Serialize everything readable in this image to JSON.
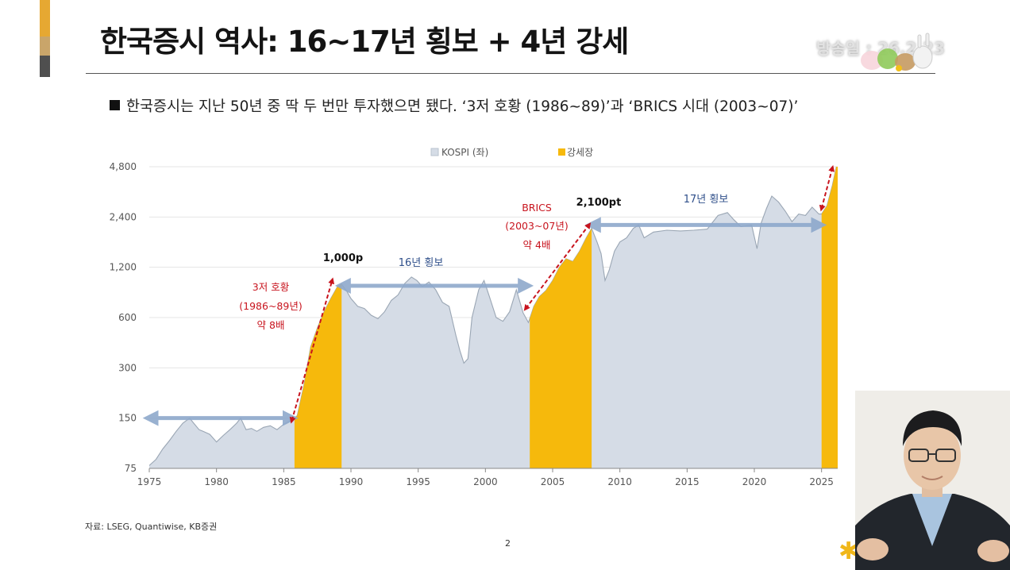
{
  "slide": {
    "title": "한국증시 역사: 16~17년 횡보 + 4년 강세",
    "subtitle": "한국증시는 지난 50년 중 딱 두 번만 투자했으면 됐다. ‘3저 호황 (1986~89)’과 ‘BRICS 시대 (2003~07)’",
    "source": "자료: LSEG, Quantiwise, KB증권",
    "page_number": "2",
    "watermark": "방송일 : 26.2.23"
  },
  "colors": {
    "accent_top": "#e6a832",
    "kospi_fill": "#d5dce6",
    "kospi_line": "#9aa6b4",
    "bull_fill": "#f6b90c",
    "arrow_blue": "#8ea9cc",
    "annotation_red": "#c8141e",
    "annotation_blue": "#2f4f8a"
  },
  "chart_data": {
    "type": "area",
    "legend": {
      "placement": "top-center",
      "items": [
        "KOSPI (좌)",
        "강세장"
      ]
    },
    "y_scale": "log",
    "ylim": [
      75,
      4800
    ],
    "yticks": [
      75,
      150,
      300,
      600,
      1200,
      2400,
      4800
    ],
    "ytick_labels": [
      "75",
      "150",
      "300",
      "600",
      "1,200",
      "2,400",
      "4,800"
    ],
    "xlim": [
      1975,
      2026.2
    ],
    "xticks": [
      1975,
      1980,
      1985,
      1990,
      1995,
      2000,
      2005,
      2010,
      2015,
      2020,
      2025
    ],
    "xtick_labels": [
      "1975",
      "1980",
      "1985",
      "1990",
      "1995",
      "2000",
      "2005",
      "2010",
      "2015",
      "2020",
      "2025"
    ],
    "series": [
      {
        "name": "KOSPI (좌)",
        "x": [
          1975.0,
          1975.5,
          1976.0,
          1976.5,
          1977.0,
          1977.5,
          1978.0,
          1978.3,
          1978.7,
          1979.0,
          1979.5,
          1980.0,
          1980.5,
          1981.0,
          1981.5,
          1981.8,
          1982.2,
          1982.6,
          1983.0,
          1983.5,
          1984.0,
          1984.5,
          1985.0,
          1985.5,
          1986.0,
          1986.5,
          1987.0,
          1987.5,
          1988.0,
          1988.5,
          1989.0,
          1989.3,
          1989.7,
          1990.0,
          1990.5,
          1991.0,
          1991.5,
          1992.0,
          1992.5,
          1993.0,
          1993.5,
          1994.0,
          1994.5,
          1994.9,
          1995.3,
          1995.8,
          1996.3,
          1996.8,
          1997.3,
          1997.8,
          1998.1,
          1998.4,
          1998.7,
          1999.0,
          1999.5,
          1999.9,
          2000.3,
          2000.8,
          2001.3,
          2001.8,
          2002.3,
          2002.8,
          2003.2,
          2003.6,
          2004.0,
          2004.5,
          2005.0,
          2005.5,
          2006.0,
          2006.5,
          2007.0,
          2007.5,
          2007.9,
          2008.3,
          2008.6,
          2008.9,
          2009.2,
          2009.6,
          2010.0,
          2010.5,
          2011.0,
          2011.4,
          2011.8,
          2012.5,
          2013.5,
          2014.5,
          2015.5,
          2016.5,
          2017.3,
          2018.0,
          2018.5,
          2019.0,
          2019.8,
          2020.2,
          2020.5,
          2020.9,
          2021.3,
          2021.8,
          2022.3,
          2022.8,
          2023.3,
          2023.8,
          2024.3,
          2024.8,
          2025.0,
          2025.4,
          2025.8,
          2026.1
        ],
        "y": [
          78,
          85,
          98,
          110,
          125,
          140,
          150,
          140,
          128,
          125,
          120,
          108,
          118,
          128,
          140,
          150,
          128,
          130,
          125,
          132,
          135,
          128,
          138,
          145,
          155,
          235,
          400,
          520,
          650,
          780,
          920,
          950,
          860,
          780,
          700,
          680,
          620,
          590,
          650,
          760,
          820,
          960,
          1050,
          1000,
          920,
          980,
          880,
          740,
          700,
          470,
          380,
          320,
          340,
          600,
          880,
          1000,
          800,
          600,
          570,
          650,
          880,
          640,
          560,
          700,
          800,
          870,
          1000,
          1200,
          1350,
          1300,
          1500,
          1800,
          2050,
          1700,
          1450,
          1000,
          1150,
          1500,
          1700,
          1800,
          2050,
          2150,
          1800,
          1950,
          2000,
          1980,
          2000,
          2030,
          2450,
          2550,
          2300,
          2100,
          2150,
          1550,
          2200,
          2700,
          3200,
          2950,
          2600,
          2250,
          2500,
          2450,
          2750,
          2500,
          2500,
          2800,
          3700,
          4800
        ]
      },
      {
        "name": "강세장",
        "periods": [
          [
            1985.8,
            1989.3
          ],
          [
            2003.3,
            2007.9
          ],
          [
            2025.0,
            2026.2
          ]
        ]
      }
    ],
    "annotations": [
      {
        "lines": [
          "3저 호황",
          "(1986~89년)",
          "약 8배"
        ],
        "color": "red"
      },
      {
        "text": "1,000p",
        "color": "black"
      },
      {
        "text": "16년 횡보",
        "color": "blue"
      },
      {
        "lines": [
          "BRICS",
          "(2003~07년)",
          "약 4배"
        ],
        "color": "red"
      },
      {
        "text": "2,100pt",
        "color": "black"
      },
      {
        "text": "17년 횡보",
        "color": "blue"
      }
    ]
  }
}
